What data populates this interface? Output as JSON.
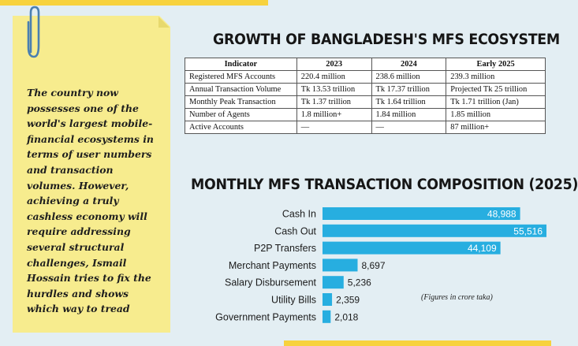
{
  "note": {
    "text": "The country now possesses one of the world's largest mobile-financial ecosystems in terms of user numbers and transaction volumes. However, achieving a truly cashless economy will require addressing several structural challenges, Ismail Hossain tries to fix the hurdles and shows which way to tread"
  },
  "table": {
    "title": "GROWTH OF BANGLADESH'S MFS ECOSYSTEM",
    "headers": [
      "Indicator",
      "2023",
      "2024",
      "Early 2025"
    ],
    "rows": [
      [
        "Registered MFS Accounts",
        "220.4 million",
        "238.6 million",
        "239.3 million"
      ],
      [
        "Annual Transaction Volume",
        "Tk 13.53 trillion",
        "Tk 17.37 trillion",
        "Projected Tk 25 trillion"
      ],
      [
        "Monthly Peak Transaction",
        "Tk 1.37 trillion",
        "Tk 1.64 trillion",
        "Tk 1.71 trillion (Jan)"
      ],
      [
        "Number of Agents",
        "1.8 million+",
        "1.84 million",
        "1.85 million"
      ],
      [
        "Active Accounts",
        "—",
        "—",
        "87 million+"
      ]
    ]
  },
  "chart_data": {
    "type": "bar",
    "orientation": "horizontal",
    "title": "MONTHLY MFS TRANSACTION COMPOSITION (2025)",
    "note": "(Figures in crore taka)",
    "categories": [
      "Cash In",
      "Cash Out",
      "P2P Transfers",
      "Merchant Payments",
      "Salary Disbursement",
      "Utility Bills",
      "Government Payments"
    ],
    "values": [
      48988,
      55516,
      44109,
      8697,
      5236,
      2359,
      2018
    ],
    "value_labels": [
      "48,988",
      "55,516",
      "44,109",
      "8,697",
      "5,236",
      "2,359",
      "2,018"
    ],
    "bar_color": "#27aee0",
    "xlim": [
      0,
      55516
    ]
  },
  "colors": {
    "background": "#e3eef3",
    "accent": "#f7d23e",
    "note": "#f7ec8e",
    "bar": "#27aee0"
  }
}
